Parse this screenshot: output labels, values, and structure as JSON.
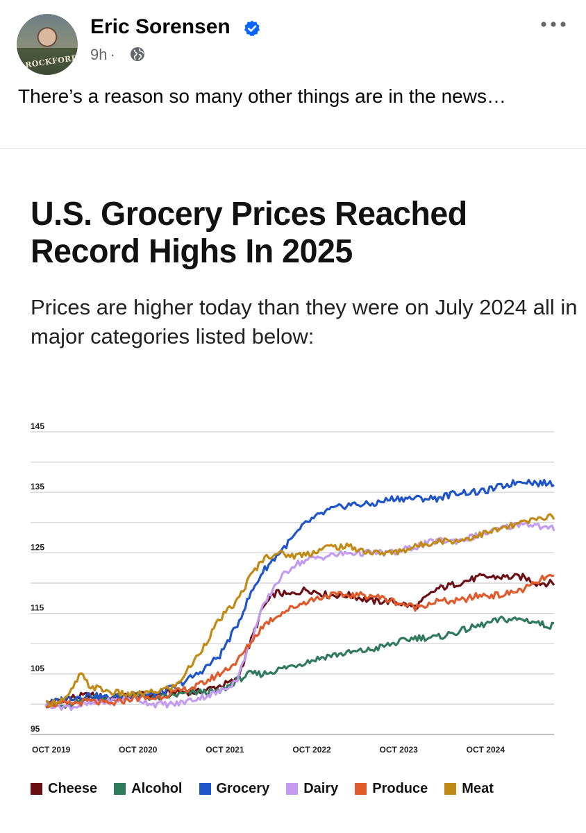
{
  "post": {
    "author": "Eric Sorensen",
    "time": "9h",
    "visibility_icon": "globe-icon",
    "verified_icon": "verified-badge-icon",
    "more_icon": "more-options-icon",
    "avatar_caption": "ROCKFORD",
    "text": "There’s a reason so many other things are in the news…"
  },
  "colors": {
    "Cheese": "#6b0f14",
    "Alcohol": "#2f7a5c",
    "Grocery": "#1f55c9",
    "Dairy": "#c39bf0",
    "Produce": "#e05a2b",
    "Meat": "#c08a14",
    "gridline": "#cfcfcf"
  },
  "chart_data": {
    "type": "line",
    "title": "U.S. Grocery Prices Reached Record Highs In 2025",
    "subtitle": "Prices are higher today than they were on July 2024 all in major categories listed below:",
    "xlabel": "",
    "ylabel": "",
    "ylim": [
      95,
      145
    ],
    "y_ticks": [
      "145",
      "135",
      "125",
      "115",
      "105",
      "95"
    ],
    "x_ticks": [
      "OCT 2019",
      "OCT 2020",
      "OCT 2021",
      "OCT 2022",
      "OCT 2023",
      "OCT 2024"
    ],
    "x_range": [
      2019.75,
      2025.6
    ],
    "series": [
      {
        "name": "Cheese",
        "points": [
          [
            2019.75,
            100
          ],
          [
            2020.0,
            101
          ],
          [
            2020.25,
            101.5
          ],
          [
            2020.5,
            101
          ],
          [
            2020.75,
            101.5
          ],
          [
            2021.0,
            101.5
          ],
          [
            2021.25,
            102
          ],
          [
            2021.5,
            102
          ],
          [
            2021.75,
            103
          ],
          [
            2021.95,
            104
          ],
          [
            2022.1,
            110
          ],
          [
            2022.25,
            116
          ],
          [
            2022.4,
            118.5
          ],
          [
            2022.55,
            118
          ],
          [
            2022.75,
            119
          ],
          [
            2023.0,
            118
          ],
          [
            2023.25,
            118
          ],
          [
            2023.5,
            117
          ],
          [
            2023.75,
            117
          ],
          [
            2024.0,
            116
          ],
          [
            2024.25,
            119
          ],
          [
            2024.5,
            120
          ],
          [
            2024.75,
            121
          ],
          [
            2025.0,
            121
          ],
          [
            2025.25,
            121
          ],
          [
            2025.4,
            120
          ],
          [
            2025.5,
            120
          ]
        ]
      },
      {
        "name": "Alcohol",
        "points": [
          [
            2019.75,
            100
          ],
          [
            2020.0,
            99.5
          ],
          [
            2020.25,
            101
          ],
          [
            2020.5,
            101
          ],
          [
            2020.75,
            101.5
          ],
          [
            2021.0,
            101
          ],
          [
            2021.25,
            101.5
          ],
          [
            2021.5,
            102
          ],
          [
            2021.75,
            102
          ],
          [
            2021.95,
            104
          ],
          [
            2022.1,
            105
          ],
          [
            2022.25,
            105
          ],
          [
            2022.5,
            106
          ],
          [
            2022.75,
            107
          ],
          [
            2023.0,
            108
          ],
          [
            2023.25,
            108.5
          ],
          [
            2023.5,
            109
          ],
          [
            2023.75,
            110
          ],
          [
            2024.0,
            111
          ],
          [
            2024.25,
            111
          ],
          [
            2024.5,
            112
          ],
          [
            2024.75,
            113
          ],
          [
            2025.0,
            114
          ],
          [
            2025.25,
            114
          ],
          [
            2025.4,
            113.5
          ],
          [
            2025.5,
            113
          ]
        ]
      },
      {
        "name": "Grocery",
        "points": [
          [
            2019.75,
            100
          ],
          [
            2020.0,
            101
          ],
          [
            2020.25,
            101.5
          ],
          [
            2020.5,
            101
          ],
          [
            2020.75,
            101.5
          ],
          [
            2021.0,
            101.5
          ],
          [
            2021.25,
            103
          ],
          [
            2021.5,
            105
          ],
          [
            2021.75,
            108
          ],
          [
            2021.95,
            113
          ],
          [
            2022.1,
            118
          ],
          [
            2022.25,
            122
          ],
          [
            2022.5,
            126
          ],
          [
            2022.75,
            130
          ],
          [
            2023.0,
            132
          ],
          [
            2023.25,
            133
          ],
          [
            2023.5,
            133
          ],
          [
            2023.75,
            134
          ],
          [
            2024.0,
            134
          ],
          [
            2024.25,
            134
          ],
          [
            2024.5,
            135
          ],
          [
            2024.75,
            135
          ],
          [
            2025.0,
            136
          ],
          [
            2025.25,
            137
          ],
          [
            2025.4,
            136.5
          ],
          [
            2025.5,
            136.5
          ]
        ]
      },
      {
        "name": "Dairy",
        "points": [
          [
            2019.75,
            100
          ],
          [
            2020.0,
            99.5
          ],
          [
            2020.25,
            100
          ],
          [
            2020.5,
            100.5
          ],
          [
            2020.75,
            101
          ],
          [
            2021.0,
            100
          ],
          [
            2021.25,
            100
          ],
          [
            2021.5,
            101
          ],
          [
            2021.75,
            102
          ],
          [
            2021.95,
            104
          ],
          [
            2022.1,
            110
          ],
          [
            2022.25,
            116
          ],
          [
            2022.4,
            120
          ],
          [
            2022.6,
            123
          ],
          [
            2022.8,
            124
          ],
          [
            2023.0,
            124.5
          ],
          [
            2023.25,
            125
          ],
          [
            2023.5,
            125
          ],
          [
            2023.75,
            125
          ],
          [
            2024.0,
            126
          ],
          [
            2024.25,
            127
          ],
          [
            2024.5,
            127
          ],
          [
            2024.75,
            128
          ],
          [
            2025.0,
            129
          ],
          [
            2025.25,
            130
          ],
          [
            2025.4,
            129.5
          ],
          [
            2025.5,
            129
          ]
        ]
      },
      {
        "name": "Produce",
        "points": [
          [
            2019.75,
            100
          ],
          [
            2020.0,
            100
          ],
          [
            2020.25,
            100.5
          ],
          [
            2020.5,
            100
          ],
          [
            2020.75,
            101
          ],
          [
            2021.0,
            101
          ],
          [
            2021.25,
            102
          ],
          [
            2021.5,
            103
          ],
          [
            2021.75,
            105
          ],
          [
            2021.95,
            107
          ],
          [
            2022.1,
            110
          ],
          [
            2022.25,
            113
          ],
          [
            2022.45,
            115
          ],
          [
            2022.75,
            117
          ],
          [
            2023.0,
            118
          ],
          [
            2023.25,
            118
          ],
          [
            2023.5,
            118
          ],
          [
            2023.75,
            117
          ],
          [
            2024.0,
            116
          ],
          [
            2024.25,
            117
          ],
          [
            2024.5,
            117
          ],
          [
            2024.75,
            118
          ],
          [
            2025.0,
            118
          ],
          [
            2025.25,
            119
          ],
          [
            2025.4,
            120
          ],
          [
            2025.5,
            121
          ]
        ]
      },
      {
        "name": "Meat",
        "points": [
          [
            2019.75,
            100
          ],
          [
            2020.0,
            101
          ],
          [
            2020.15,
            105
          ],
          [
            2020.25,
            103
          ],
          [
            2020.5,
            102
          ],
          [
            2020.75,
            101.5
          ],
          [
            2021.0,
            102
          ],
          [
            2021.25,
            103
          ],
          [
            2021.5,
            108
          ],
          [
            2021.75,
            114
          ],
          [
            2021.95,
            117
          ],
          [
            2022.1,
            121
          ],
          [
            2022.25,
            124
          ],
          [
            2022.4,
            125
          ],
          [
            2022.6,
            124.5
          ],
          [
            2022.8,
            125
          ],
          [
            2023.0,
            126
          ],
          [
            2023.25,
            126
          ],
          [
            2023.5,
            125
          ],
          [
            2023.75,
            125
          ],
          [
            2024.0,
            126
          ],
          [
            2024.25,
            127
          ],
          [
            2024.5,
            127
          ],
          [
            2024.75,
            128
          ],
          [
            2025.0,
            129
          ],
          [
            2025.25,
            130
          ],
          [
            2025.4,
            130.5
          ],
          [
            2025.5,
            131
          ]
        ]
      }
    ],
    "legend": [
      "Cheese",
      "Alcohol",
      "Grocery",
      "Dairy",
      "Produce",
      "Meat"
    ],
    "grid": true,
    "legend_placement": "bottom"
  }
}
